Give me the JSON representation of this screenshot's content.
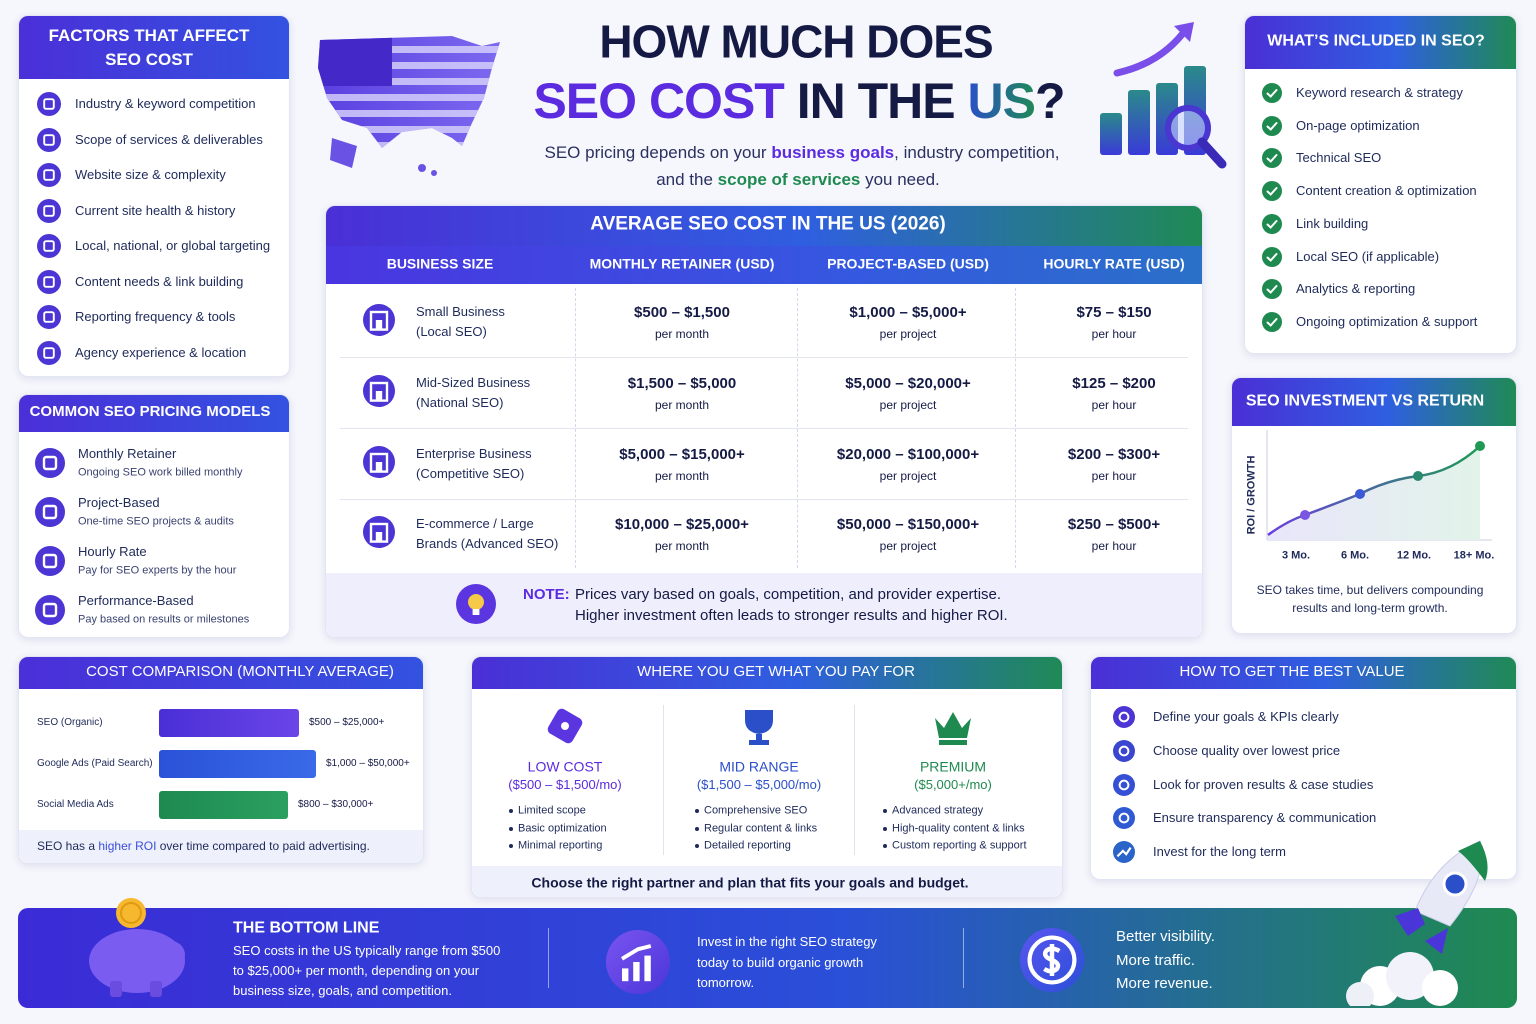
{
  "header": {
    "title_line1": "HOW MUCH DOES",
    "title_line2": [
      "SEO COST",
      " IN THE ",
      "US",
      "?"
    ],
    "subtitle_line1": [
      "SEO pricing depends on your ",
      "business goals",
      ", industry competition,"
    ],
    "subtitle_line2": [
      "and the ",
      "scope of services",
      " you need."
    ]
  },
  "factors": {
    "title": [
      "FACTORS THAT AFFECT",
      "SEO COST"
    ],
    "items": [
      "Industry & keyword competition",
      "Scope of services & deliverables",
      "Website size & complexity",
      "Current site health & history",
      "Local, national, or global targeting",
      "Content needs & link building",
      "Reporting frequency & tools",
      "Agency experience & location"
    ]
  },
  "pricing_models": {
    "title": "COMMON SEO PRICING MODELS",
    "items": [
      {
        "name": "Monthly Retainer",
        "description": "Ongoing SEO work billed monthly"
      },
      {
        "name": "Project-Based",
        "description": "One-time SEO projects & audits"
      },
      {
        "name": "Hourly Rate",
        "description": "Pay for SEO experts by the hour"
      },
      {
        "name": "Performance-Based",
        "description": "Pay based on results or milestones"
      }
    ]
  },
  "table": {
    "title": "AVERAGE SEO COST IN THE US (2026)",
    "columns": [
      "BUSINESS SIZE",
      "MONTHLY RETAINER (USD)",
      "PROJECT-BASED (USD)",
      "HOURLY RATE (USD)"
    ],
    "rows": [
      {
        "business": [
          "Small Business",
          "(Local SEO)"
        ],
        "monthly": {
          "price": "$500 – $1,500",
          "unit": "per month"
        },
        "project": {
          "price": "$1,000 – $5,000+",
          "unit": "per project"
        },
        "hourly": {
          "price": "$75 – $150",
          "unit": "per hour"
        }
      },
      {
        "business": [
          "Mid-Sized Business",
          "(National SEO)"
        ],
        "monthly": {
          "price": "$1,500 – $5,000",
          "unit": "per month"
        },
        "project": {
          "price": "$5,000 – $20,000+",
          "unit": "per project"
        },
        "hourly": {
          "price": "$125 – $200",
          "unit": "per hour"
        }
      },
      {
        "business": [
          "Enterprise Business",
          "(Competitive SEO)"
        ],
        "monthly": {
          "price": "$5,000 – $15,000+",
          "unit": "per month"
        },
        "project": {
          "price": "$20,000 – $100,000+",
          "unit": "per project"
        },
        "hourly": {
          "price": "$200 – $300+",
          "unit": "per hour"
        }
      },
      {
        "business": [
          "E-commerce / Large",
          "Brands (Advanced SEO)"
        ],
        "monthly": {
          "price": "$10,000 – $25,000+",
          "unit": "per month"
        },
        "project": {
          "price": "$50,000 – $150,000+",
          "unit": "per project"
        },
        "hourly": {
          "price": "$250 – $500+",
          "unit": "per hour"
        }
      }
    ],
    "note": {
      "label": "NOTE:",
      "lines": [
        "Prices vary based on goals, competition, and provider expertise.",
        "Higher investment often leads to stronger results and higher ROI."
      ]
    }
  },
  "included": {
    "title": "WHAT’S INCLUDED IN SEO?",
    "items": [
      "Keyword research & strategy",
      "On-page optimization",
      "Technical SEO",
      "Content creation & optimization",
      "Link building",
      "Local SEO (if applicable)",
      "Analytics & reporting",
      "Ongoing optimization & support"
    ]
  },
  "roi": {
    "title": "SEO INVESTMENT VS RETURN",
    "y_label": "ROI / GROWTH",
    "x_labels": [
      "3 Mo.",
      "6 Mo.",
      "12 Mo.",
      "18+ Mo."
    ],
    "caption": [
      "SEO takes time, but delivers compounding",
      "results and long-term growth."
    ]
  },
  "cost_comparison": {
    "title": "COST COMPARISON (MONTHLY AVERAGE)",
    "rows": [
      {
        "name": "SEO (Organic)",
        "range": "$500 – $25,000+"
      },
      {
        "name": "Google Ads (Paid Search)",
        "range": "$1,000 – $50,000+"
      },
      {
        "name": "Social Media Ads",
        "range": "$800 – $30,000+"
      }
    ],
    "footer": [
      "SEO has a ",
      "higher ROI",
      " over time compared to paid advertising."
    ]
  },
  "tiers": {
    "title": "WHERE YOU GET WHAT YOU PAY FOR",
    "items": [
      {
        "name": "LOW COST",
        "range": "($500 – $1,500/mo)",
        "features": [
          "Limited scope",
          "Basic optimization",
          "Minimal reporting"
        ]
      },
      {
        "name": "MID RANGE",
        "range": "($1,500 – $5,000/mo)",
        "features": [
          "Comprehensive SEO",
          "Regular content & links",
          "Detailed reporting"
        ]
      },
      {
        "name": "PREMIUM",
        "range": "($5,000+/mo)",
        "features": [
          "Advanced strategy",
          "High-quality content & links",
          "Custom reporting & support"
        ]
      }
    ],
    "footer": "Choose the right partner and plan that fits your goals and budget."
  },
  "best_value": {
    "title": "HOW TO GET THE BEST VALUE",
    "items": [
      "Define your goals & KPIs clearly",
      "Choose quality over lowest price",
      "Look for proven results & case studies",
      "Ensure transparency & communication",
      "Invest for the long term"
    ]
  },
  "bottom_line": {
    "title": "THE BOTTOM LINE",
    "text": [
      "SEO costs in the US typically range from $500",
      "to $25,000+ per month, depending on your",
      "business size, goals, and competition."
    ],
    "middle": [
      "Invest in the right SEO strategy",
      "today to build organic growth",
      "tomorrow."
    ],
    "right": [
      "Better visibility.",
      "More traffic.",
      "More revenue."
    ]
  }
}
